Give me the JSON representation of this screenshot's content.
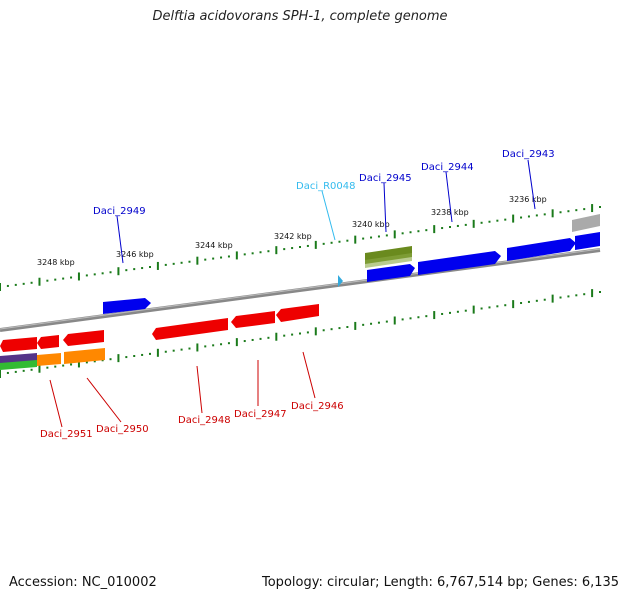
{
  "title": "Delftia acidovorans SPH-1, complete genome",
  "footer": {
    "accession": "Accession: NC_010002",
    "summary": "Topology: circular; Length: 6,767,514 bp; Genes: 6,135"
  },
  "colors": {
    "backbone": "#888888",
    "ticks": "#1a7a1a",
    "forward_label": "#0000cc",
    "reverse_label": "#cc0000",
    "rna_label": "#33bbee"
  },
  "scale_labels": [
    "3248 kbp",
    "3246 kbp",
    "3244 kbp",
    "3242 kbp",
    "3240 kbp",
    "3238 kbp",
    "3236 kbp"
  ],
  "genes": [
    {
      "name": "Daci_2943",
      "strand": "forward",
      "color": "#0000ee"
    },
    {
      "name": "Daci_2944",
      "strand": "forward",
      "color": "#0000ee"
    },
    {
      "name": "Daci_2945",
      "strand": "forward",
      "color": "#0000ee"
    },
    {
      "name": "Daci_R0048",
      "strand": "forward",
      "color": "#33bbee"
    },
    {
      "name": "Daci_2949",
      "strand": "forward",
      "color": "#0000ee"
    },
    {
      "name": "Daci_2946",
      "strand": "reverse",
      "color": "#ee0000"
    },
    {
      "name": "Daci_2947",
      "strand": "reverse",
      "color": "#ee0000"
    },
    {
      "name": "Daci_2948",
      "strand": "reverse",
      "color": "#ee0000"
    },
    {
      "name": "Daci_2950",
      "strand": "reverse",
      "color": "#ff8800"
    },
    {
      "name": "Daci_2951",
      "strand": "reverse",
      "color": "#ee0000"
    }
  ]
}
